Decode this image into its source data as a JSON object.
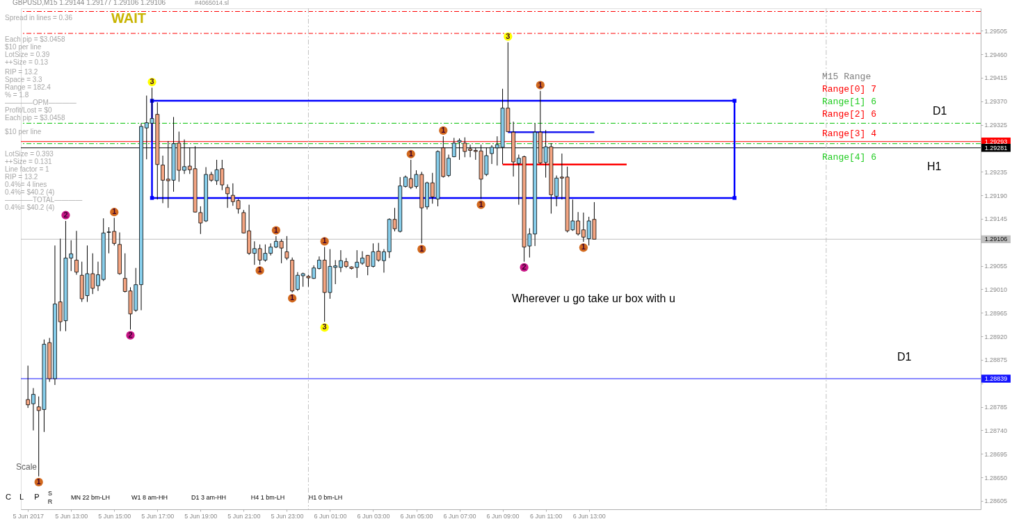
{
  "chart_data": {
    "type": "candlestick",
    "title": "GBPUSD,M15  1.29144 1.29177 1.29106 1.29106",
    "x": [
      "2017-06-05T11:00",
      "2017-06-05T11:15",
      "2017-06-05T11:30",
      "2017-06-05T11:45",
      "2017-06-05T12:00",
      "2017-06-05T12:15",
      "2017-06-05T12:30",
      "2017-06-05T12:45",
      "2017-06-05T13:00",
      "2017-06-05T13:15",
      "2017-06-05T13:30",
      "2017-06-05T13:45",
      "2017-06-05T14:00",
      "2017-06-05T14:15",
      "2017-06-05T14:30",
      "2017-06-05T14:45",
      "2017-06-05T15:00",
      "2017-06-05T15:15",
      "2017-06-05T15:30",
      "2017-06-05T15:45",
      "2017-06-05T16:00",
      "2017-06-05T16:15",
      "2017-06-05T16:30",
      "2017-06-05T16:45",
      "2017-06-05T17:00",
      "2017-06-05T17:15",
      "2017-06-05T17:30",
      "2017-06-05T17:45",
      "2017-06-05T18:00",
      "2017-06-05T18:15",
      "2017-06-05T18:30",
      "2017-06-05T18:45",
      "2017-06-05T19:00",
      "2017-06-05T19:15",
      "2017-06-05T19:30",
      "2017-06-05T19:45",
      "2017-06-05T20:00",
      "2017-06-05T20:15",
      "2017-06-05T20:30",
      "2017-06-05T20:45",
      "2017-06-05T21:00",
      "2017-06-05T21:15",
      "2017-06-05T21:30",
      "2017-06-05T21:45",
      "2017-06-05T22:00",
      "2017-06-05T22:15",
      "2017-06-05T22:30",
      "2017-06-05T22:45",
      "2017-06-05T23:00",
      "2017-06-05T23:15",
      "2017-06-05T23:30",
      "2017-06-05T23:45",
      "2017-06-06T00:00",
      "2017-06-06T00:15",
      "2017-06-06T00:30",
      "2017-06-06T00:45",
      "2017-06-06T01:00",
      "2017-06-06T01:15",
      "2017-06-06T01:30",
      "2017-06-06T01:45",
      "2017-06-06T02:00",
      "2017-06-06T02:15",
      "2017-06-06T02:30",
      "2017-06-06T02:45",
      "2017-06-06T03:00",
      "2017-06-06T03:15",
      "2017-06-06T03:30",
      "2017-06-06T03:45",
      "2017-06-06T04:00",
      "2017-06-06T04:15",
      "2017-06-06T04:30",
      "2017-06-06T04:45",
      "2017-06-06T05:00",
      "2017-06-06T05:15",
      "2017-06-06T05:30",
      "2017-06-06T05:45",
      "2017-06-06T06:00",
      "2017-06-06T06:15",
      "2017-06-06T06:30",
      "2017-06-06T06:45",
      "2017-06-06T07:00",
      "2017-06-06T07:15",
      "2017-06-06T07:30",
      "2017-06-06T07:45",
      "2017-06-06T08:00",
      "2017-06-06T08:15",
      "2017-06-06T08:30",
      "2017-06-06T08:45",
      "2017-06-06T09:00",
      "2017-06-06T09:15",
      "2017-06-06T09:30",
      "2017-06-06T09:45",
      "2017-06-06T10:00",
      "2017-06-06T10:15",
      "2017-06-06T10:30",
      "2017-06-06T10:45",
      "2017-06-06T11:00",
      "2017-06-06T11:15",
      "2017-06-06T11:30",
      "2017-06-06T11:45",
      "2017-06-06T12:00",
      "2017-06-06T12:15",
      "2017-06-06T12:30",
      "2017-06-06T12:45",
      "2017-06-06T13:00",
      "2017-06-06T13:15"
    ],
    "ohlc": [
      [
        1.28799,
        1.28864,
        1.28783,
        1.28789
      ],
      [
        1.28791,
        1.28821,
        1.2874,
        1.28809
      ],
      [
        1.28785,
        1.28805,
        1.28652,
        1.28778
      ],
      [
        1.2878,
        1.28914,
        1.28737,
        1.28905
      ],
      [
        1.28908,
        1.28917,
        1.28833,
        1.28839
      ],
      [
        1.28839,
        1.29094,
        1.28827,
        1.28982
      ],
      [
        1.28986,
        1.29107,
        1.2893,
        1.28948
      ],
      [
        1.2895,
        1.29141,
        1.2893,
        1.2907
      ],
      [
        1.2907,
        1.29104,
        1.29045,
        1.29078
      ],
      [
        1.29066,
        1.29122,
        1.29038,
        1.29043
      ],
      [
        1.29037,
        1.29063,
        1.28986,
        1.28992
      ],
      [
        1.28998,
        1.29094,
        1.28986,
        1.2904
      ],
      [
        1.2904,
        1.29079,
        1.29001,
        1.29012
      ],
      [
        1.29017,
        1.29063,
        1.29007,
        1.29038
      ],
      [
        1.29029,
        1.29146,
        1.29026,
        1.29118
      ],
      [
        1.29119,
        1.29129,
        1.29079,
        1.2912
      ],
      [
        1.29121,
        1.29147,
        1.29094,
        1.29098
      ],
      [
        1.29096,
        1.29119,
        1.29038,
        1.2904
      ],
      [
        1.29031,
        1.29079,
        1.29004,
        1.29006
      ],
      [
        1.29007,
        1.29014,
        1.28933,
        1.28963
      ],
      [
        1.2897,
        1.29051,
        1.28967,
        1.29019
      ],
      [
        1.29019,
        1.29328,
        1.2897,
        1.29322
      ],
      [
        1.29319,
        1.29381,
        1.29259,
        1.29329
      ],
      [
        1.29328,
        1.29396,
        1.29294,
        1.29337
      ],
      [
        1.29345,
        1.29368,
        1.29182,
        1.29249
      ],
      [
        1.29248,
        1.29266,
        1.29175,
        1.29219
      ],
      [
        1.29221,
        1.29294,
        1.29166,
        1.29218
      ],
      [
        1.29219,
        1.2934,
        1.29197,
        1.29289
      ],
      [
        1.2929,
        1.29312,
        1.29216,
        1.29238
      ],
      [
        1.29238,
        1.29297,
        1.29231,
        1.29245
      ],
      [
        1.29246,
        1.29281,
        1.29231,
        1.29239
      ],
      [
        1.29241,
        1.29284,
        1.29157,
        1.29158
      ],
      [
        1.29157,
        1.29169,
        1.29116,
        1.29137
      ],
      [
        1.29141,
        1.29244,
        1.29139,
        1.2923
      ],
      [
        1.2923,
        1.29235,
        1.29216,
        1.29219
      ],
      [
        1.29218,
        1.29258,
        1.2921,
        1.29239
      ],
      [
        1.29241,
        1.29258,
        1.292,
        1.2921
      ],
      [
        1.29205,
        1.29211,
        1.29166,
        1.29193
      ],
      [
        1.2919,
        1.29213,
        1.2917,
        1.29178
      ],
      [
        1.2918,
        1.29183,
        1.29155,
        1.29164
      ],
      [
        1.29157,
        1.29162,
        1.29117,
        1.29118
      ],
      [
        1.29122,
        1.29172,
        1.29076,
        1.29079
      ],
      [
        1.29079,
        1.29102,
        1.29057,
        1.29088
      ],
      [
        1.29088,
        1.29096,
        1.29057,
        1.29066
      ],
      [
        1.29066,
        1.29096,
        1.29063,
        1.29079
      ],
      [
        1.29079,
        1.29098,
        1.29075,
        1.29091
      ],
      [
        1.29091,
        1.29112,
        1.29089,
        1.29102
      ],
      [
        1.29102,
        1.29106,
        1.2906,
        1.29089
      ],
      [
        1.29082,
        1.29112,
        1.29066,
        1.2907
      ],
      [
        1.29066,
        1.29071,
        1.29004,
        1.29007
      ],
      [
        1.2901,
        1.29043,
        1.29007,
        1.29037
      ],
      [
        1.29036,
        1.29042,
        1.29015,
        1.2904
      ],
      [
        1.29035,
        1.29038,
        1.29015,
        1.29032
      ],
      [
        1.29031,
        1.29056,
        1.2903,
        1.29051
      ],
      [
        1.2905,
        1.29073,
        1.29048,
        1.29066
      ],
      [
        1.29066,
        1.29091,
        1.28948,
        1.29004
      ],
      [
        1.29004,
        1.29087,
        1.28992,
        1.29054
      ],
      [
        1.29052,
        1.29066,
        1.2902,
        1.29055
      ],
      [
        1.29052,
        1.29085,
        1.29043,
        1.29065
      ],
      [
        1.29063,
        1.2907,
        1.29051,
        1.29054
      ],
      [
        1.29053,
        1.29054,
        1.29048,
        1.2905
      ],
      [
        1.29052,
        1.29085,
        1.29032,
        1.29062
      ],
      [
        1.2906,
        1.29083,
        1.29057,
        1.2907
      ],
      [
        1.29075,
        1.29076,
        1.29037,
        1.29054
      ],
      [
        1.29054,
        1.29098,
        1.29052,
        1.29082
      ],
      [
        1.29083,
        1.29099,
        1.29063,
        1.29066
      ],
      [
        1.29065,
        1.29087,
        1.29042,
        1.29082
      ],
      [
        1.29082,
        1.29146,
        1.2907,
        1.29144
      ],
      [
        1.29144,
        1.29166,
        1.29121,
        1.29126
      ],
      [
        1.29121,
        1.29225,
        1.29119,
        1.29208
      ],
      [
        1.29207,
        1.29228,
        1.29205,
        1.29225
      ],
      [
        1.29222,
        1.29258,
        1.29202,
        1.29205
      ],
      [
        1.29207,
        1.29238,
        1.29203,
        1.2923
      ],
      [
        1.2923,
        1.29235,
        1.29098,
        1.29166
      ],
      [
        1.29168,
        1.29216,
        1.29163,
        1.29214
      ],
      [
        1.29214,
        1.29233,
        1.29174,
        1.29187
      ],
      [
        1.29183,
        1.29276,
        1.29169,
        1.29274
      ],
      [
        1.29281,
        1.29303,
        1.29224,
        1.29226
      ],
      [
        1.29228,
        1.29268,
        1.29225,
        1.29261
      ],
      [
        1.29264,
        1.293,
        1.29263,
        1.2929
      ],
      [
        1.29292,
        1.29299,
        1.29258,
        1.29295
      ],
      [
        1.2929,
        1.29301,
        1.29263,
        1.29274
      ],
      [
        1.29279,
        1.29287,
        1.29263,
        1.29276
      ],
      [
        1.29276,
        1.29281,
        1.29258,
        1.29274
      ],
      [
        1.29275,
        1.29287,
        1.29183,
        1.29221
      ],
      [
        1.2923,
        1.29281,
        1.29227,
        1.29266
      ],
      [
        1.2927,
        1.29286,
        1.2925,
        1.29282
      ],
      [
        1.29281,
        1.29303,
        1.29247,
        1.29287
      ],
      [
        1.29282,
        1.29394,
        1.2925,
        1.29357
      ],
      [
        1.29357,
        1.29483,
        1.29311,
        1.29312
      ],
      [
        1.29311,
        1.29331,
        1.29226,
        1.29254
      ],
      [
        1.29251,
        1.29268,
        1.29172,
        1.29261
      ],
      [
        1.29264,
        1.29266,
        1.29063,
        1.29091
      ],
      [
        1.29093,
        1.29127,
        1.29071,
        1.29116
      ],
      [
        1.29116,
        1.29328,
        1.29093,
        1.29311
      ],
      [
        1.29311,
        1.2939,
        1.2925,
        1.29252
      ],
      [
        1.29253,
        1.29315,
        1.29224,
        1.29283
      ],
      [
        1.29283,
        1.2929,
        1.29155,
        1.29191
      ],
      [
        1.29188,
        1.29228,
        1.29169,
        1.29223
      ],
      [
        1.29225,
        1.2927,
        1.29182,
        1.29223
      ],
      [
        1.29225,
        1.29245,
        1.29119,
        1.29122
      ],
      [
        1.29124,
        1.29182,
        1.29122,
        1.29141
      ],
      [
        1.29141,
        1.29158,
        1.29113,
        1.29116
      ],
      [
        1.29124,
        1.29157,
        1.29101,
        1.2911
      ],
      [
        1.29107,
        1.29149,
        1.29094,
        1.29141
      ],
      [
        1.29144,
        1.29177,
        1.29106,
        1.29106
      ]
    ],
    "colors": [
      "#f4a582",
      "#87ceeb",
      "#f4a582",
      "#87ceeb",
      "#f4a582",
      "#87ceeb",
      "#f4a582",
      "#87ceeb",
      "#87ceeb",
      "#f4a582",
      "#f4a582",
      "#87ceeb",
      "#f4a582",
      "#87ceeb",
      "#87ceeb",
      "#87ceeb",
      "#f4a582",
      "#f4a582",
      "#f4a582",
      "#f4a582",
      "#87ceeb",
      "#87ceeb",
      "#87ceeb",
      "#87ceeb",
      "#f4a582",
      "#f4a582",
      "#f4a582",
      "#87ceeb",
      "#f4a582",
      "#87ceeb",
      "#f4a582",
      "#f4a582",
      "#f4a582",
      "#87ceeb",
      "#f4a582",
      "#87ceeb",
      "#f4a582",
      "#f4a582",
      "#f4a582",
      "#f4a582",
      "#f4a582",
      "#f4a582",
      "#87ceeb",
      "#f4a582",
      "#87ceeb",
      "#87ceeb",
      "#87ceeb",
      "#f4a582",
      "#f4a582",
      "#f4a582",
      "#87ceeb",
      "#87ceeb",
      "#f4a582",
      "#87ceeb",
      "#87ceeb",
      "#f4a582",
      "#87ceeb",
      "#87ceeb",
      "#87ceeb",
      "#f4a582",
      "#f4a582",
      "#87ceeb",
      "#87ceeb",
      "#f4a582",
      "#87ceeb",
      "#f4a582",
      "#87ceeb",
      "#87ceeb",
      "#f4a582",
      "#87ceeb",
      "#87ceeb",
      "#f4a582",
      "#87ceeb",
      "#f4a582",
      "#87ceeb",
      "#f4a582",
      "#87ceeb",
      "#f4a582",
      "#87ceeb",
      "#87ceeb",
      "#87ceeb",
      "#f4a582",
      "#f4a582",
      "#f4a582",
      "#f4a582",
      "#87ceeb",
      "#87ceeb",
      "#87ceeb",
      "#87ceeb",
      "#f4a582",
      "#f4a582",
      "#87ceeb",
      "#f4a582",
      "#87ceeb",
      "#87ceeb",
      "#f4a582",
      "#87ceeb",
      "#f4a582",
      "#87ceeb",
      "#f4a582",
      "#f4a582",
      "#87ceeb",
      "#f4a582",
      "#f4a582",
      "#87ceeb",
      "#f4a582"
    ],
    "series": [
      {
        "type": "line",
        "color": "#0000ff",
        "marker": "square",
        "x": [
          "2017-06-05T16:45",
          "2017-06-05T16:45",
          "2017-06-06T19:45",
          "2017-06-06T19:45"
        ],
        "values": [
          1.29185,
          1.29371,
          1.29371,
          1.29185
        ]
      },
      {
        "type": "line",
        "color": "#0000ff",
        "x": [
          "2017-06-05T16:45",
          "2017-06-06T19:45"
        ],
        "values": [
          1.29185,
          1.29185
        ]
      },
      {
        "type": "line",
        "color": "#1a1af0",
        "x": [
          "2017-06-06T09:15",
          "2017-06-06T13:15"
        ],
        "values": [
          1.29311,
          1.29311
        ]
      },
      {
        "type": "line",
        "color": "#ff0000",
        "x": [
          "2017-06-06T09:00",
          "2017-06-06T14:45"
        ],
        "values": [
          1.29249,
          1.29249
        ]
      },
      {
        "type": "scatter",
        "marker": "circle",
        "x": [
          "2017-06-05T11:30",
          "2017-06-05T12:45",
          "2017-06-05T15:00",
          "2017-06-05T15:45",
          "2017-06-05T16:45",
          "2017-06-05T21:45",
          "2017-06-05T22:30",
          "2017-06-05T23:15",
          "2017-06-06T00:45",
          "2017-06-06T00:45",
          "2017-06-06T04:45",
          "2017-06-06T05:15",
          "2017-06-06T06:15",
          "2017-06-06T08:00",
          "2017-06-06T09:15",
          "2017-06-06T10:00",
          "2017-06-06T10:45",
          "2017-06-06T12:45"
        ],
        "values": [
          1.28641,
          1.29152,
          1.29158,
          1.28922,
          1.29407,
          1.29046,
          1.29123,
          1.28993,
          1.29102,
          1.28937,
          1.29269,
          1.29087,
          1.29314,
          1.29172,
          1.29494,
          1.29052,
          1.29401,
          1.2909
        ],
        "colors": [
          "#d2691e",
          "#c71585",
          "#d2691e",
          "#c71585",
          "#ffff00",
          "#d2691e",
          "#d2691e",
          "#d2691e",
          "#d2691e",
          "#ffff00",
          "#d2691e",
          "#d2691e",
          "#d2691e",
          "#d2691e",
          "#ffff00",
          "#c71585",
          "#d2691e",
          "#d2691e"
        ]
      }
    ],
    "xlim": [
      "2017-06-05T10:50",
      "2017-06-07T07:00"
    ],
    "xticks": [
      {
        "value": "2017-06-05T11:00",
        "label": "5 Jun 2017"
      },
      {
        "value": "2017-06-05T13:00",
        "label": "5 Jun 13:00"
      },
      {
        "value": "2017-06-05T15:00",
        "label": "5 Jun 15:00"
      },
      {
        "value": "2017-06-05T17:00",
        "label": "5 Jun 17:00"
      },
      {
        "value": "2017-06-05T19:00",
        "label": "5 Jun 19:00"
      },
      {
        "value": "2017-06-05T21:00",
        "label": "5 Jun 21:00"
      },
      {
        "value": "2017-06-05T23:00",
        "label": "5 Jun 23:00"
      },
      {
        "value": "2017-06-06T01:00",
        "label": "6 Jun 01:00"
      },
      {
        "value": "2017-06-06T03:00",
        "label": "6 Jun 03:00"
      },
      {
        "value": "2017-06-06T05:00",
        "label": "6 Jun 05:00"
      },
      {
        "value": "2017-06-06T07:00",
        "label": "6 Jun 07:00"
      },
      {
        "value": "2017-06-06T09:00",
        "label": "6 Jun 09:00"
      },
      {
        "value": "2017-06-06T11:00",
        "label": "6 Jun 11:00"
      },
      {
        "value": "2017-06-06T13:00",
        "label": "6 Jun 13:00"
      }
    ],
    "ylim": [
      1.28589,
      1.29548
    ],
    "yticks": [
      {
        "value": 1.28605,
        "label": "1.28605"
      },
      {
        "value": 1.2865,
        "label": "1.28650"
      },
      {
        "value": 1.28695,
        "label": "1.28695"
      },
      {
        "value": 1.2874,
        "label": "1.28740"
      },
      {
        "value": 1.28785,
        "label": "1.28785"
      },
      {
        "value": 1.2883,
        "label": null
      },
      {
        "value": 1.28875,
        "label": "1.28875"
      },
      {
        "value": 1.2892,
        "label": "1.28920"
      },
      {
        "value": 1.28965,
        "label": "1.28965"
      },
      {
        "value": 1.2901,
        "label": "1.29010"
      },
      {
        "value": 1.29055,
        "label": "1.29055"
      },
      {
        "value": 1.291,
        "label": null
      },
      {
        "value": 1.29145,
        "label": "1.29145"
      },
      {
        "value": 1.2919,
        "label": "1.29190"
      },
      {
        "value": 1.29235,
        "label": "1.29235"
      },
      {
        "value": 1.2928,
        "label": null
      },
      {
        "value": 1.29325,
        "label": "1.29325"
      },
      {
        "value": 1.2937,
        "label": "1.29370"
      },
      {
        "value": 1.29415,
        "label": "1.29415"
      },
      {
        "value": 1.2946,
        "label": "1.29460"
      },
      {
        "value": 1.29505,
        "label": "1.29505"
      }
    ],
    "ref_lines": [
      {
        "axis": "y",
        "value": 1.29542,
        "color": "#ff0000",
        "line_style": "dashed"
      },
      {
        "axis": "y",
        "value": 1.295,
        "color": "#ff0000",
        "line_style": "dashed"
      },
      {
        "axis": "y",
        "value": 1.29328,
        "color": "#00c000",
        "line_style": "dashed"
      },
      {
        "axis": "y",
        "value": 1.29289,
        "color": "#00c000",
        "line_style": "dashed"
      },
      {
        "axis": "y",
        "value": 1.29293,
        "label": "1.29293",
        "color": "#ff0000"
      },
      {
        "axis": "y",
        "value": 1.29281,
        "label": "1.29281",
        "color": "#000000"
      },
      {
        "axis": "y",
        "value": 1.29106,
        "label": "1.29106",
        "color": "#c0c0c0"
      },
      {
        "axis": "y",
        "value": 1.28839,
        "label": "1.28839",
        "color": "#1414ff"
      },
      {
        "axis": "x",
        "value": "2017-06-06T00:00",
        "color": "#c0c0c0",
        "line_style": "dashed"
      },
      {
        "axis": "x",
        "value": "2017-06-07T00:00",
        "color": "#c0c0c0",
        "line_style": "dashed"
      }
    ],
    "annotations": [
      "#4065014.sl",
      "Spread in lines = 0.36",
      "WAIT",
      "Each pip = $3.0458",
      "$10 per line",
      "LotSize = 0.39",
      "++Size = 0.13",
      "RIP = 13.2",
      "Space = 3.3",
      "Range = 182.4",
      "% = 1.8",
      "————OPM————",
      "Profit/Lost = $0",
      "Each pip = $3.0458",
      "$10 per line",
      "LotSize = 0.393",
      "++Size = 0.131",
      "Line factor = 1",
      "RIP = 13.2",
      "0.4%= 4 lines",
      "0.4%= $40.2 (4)",
      "————TOTAL————",
      "0.4%= $40.2 (4)",
      "M15 Range",
      "Range[0]   7",
      "Range[1]   6",
      "Range[2]   6",
      "Range[3]   4",
      "Range[4]   6",
      "D1",
      "H1",
      "Wherever u go take ur box with u",
      "D1",
      "Scale",
      "C",
      "L",
      "P",
      "S",
      "R",
      "MN 22 bm-LH",
      "W1 8 am-HH",
      "D1 3 am-HH",
      "H4 1 bm-LH",
      "H1 0 bm-LH",
      {
        "text": "1",
        "x": "2017-06-05T11:30",
        "y": 1.28641
      },
      {
        "text": "2",
        "x": "2017-06-05T12:45",
        "y": 1.29152
      },
      {
        "text": "1",
        "x": "2017-06-05T15:00",
        "y": 1.29158
      },
      {
        "text": "2",
        "x": "2017-06-05T15:45",
        "y": 1.28922
      },
      {
        "text": "3",
        "x": "2017-06-05T16:45",
        "y": 1.29407
      },
      {
        "text": "1",
        "x": "2017-06-05T21:45",
        "y": 1.29046
      },
      {
        "text": "1",
        "x": "2017-06-05T22:30",
        "y": 1.29123
      },
      {
        "text": "1",
        "x": "2017-06-05T23:15",
        "y": 1.28993
      },
      {
        "text": "1",
        "x": "2017-06-06T00:45",
        "y": 1.29102
      },
      {
        "text": "3",
        "x": "2017-06-06T00:45",
        "y": 1.28937
      },
      {
        "text": "1",
        "x": "2017-06-06T04:45",
        "y": 1.29269
      },
      {
        "text": "1",
        "x": "2017-06-06T05:15",
        "y": 1.29087
      },
      {
        "text": "1",
        "x": "2017-06-06T06:15",
        "y": 1.29314
      },
      {
        "text": "1",
        "x": "2017-06-06T08:00",
        "y": 1.29172
      },
      {
        "text": "3",
        "x": "2017-06-06T09:15",
        "y": 1.29494
      },
      {
        "text": "2",
        "x": "2017-06-06T10:00",
        "y": 1.29052
      },
      {
        "text": "1",
        "x": "2017-06-06T10:45",
        "y": 1.29401
      },
      {
        "text": "1",
        "x": "2017-06-06T12:45",
        "y": 1.2909
      }
    ]
  }
}
